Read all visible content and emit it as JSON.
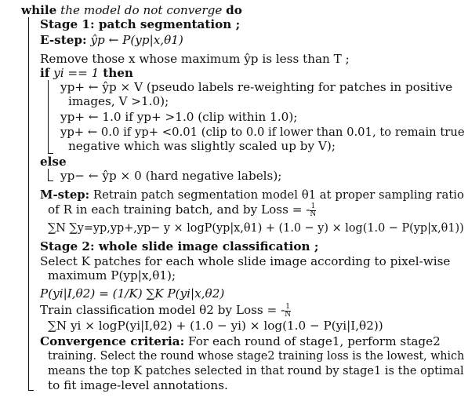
{
  "algorithm": {
    "header": {
      "keyword_while": "while",
      "condition": "the model do not converge",
      "keyword_do": "do"
    },
    "stage1": {
      "title": "Stage 1: patch segmentation ;",
      "estep_label": "E-step:",
      "estep_formula": "ŷp ← P(yp|x,θ1)",
      "remove_line": "Remove those x whose maximum ŷp is less than T ;",
      "if_keyword": "if",
      "if_condition": "yi == 1",
      "then_keyword": "then",
      "pos_line1": "yp+ ← ŷp × V (pseudo labels re-weighting for patches in positive",
      "pos_line2": "images, V >1.0);",
      "clip_line": "yp+ ← 1.0 if yp+ >1.0 (clip within 1.0);",
      "zero_line1": "yp+ ← 0.0 if yp+ <0.01 (clip to 0.0 if lower than 0.01, to remain true",
      "zero_line2": "negative which was slightly scaled up by V);",
      "else_keyword": "else",
      "neg_line": "yp− ← ŷp × 0 (hard negative labels);",
      "mstep_label": "M-step:",
      "mstep_line1": "Retrain patch segmentation model θ1 at proper sampling ratio",
      "mstep_line2": "of R in each training batch, and by Loss = -",
      "mstep_frac_num": "1",
      "mstep_frac_den": "N",
      "mstep_loss": "∑N ∑y=yp,yp+,yp− y × logP(yp|x,θ1) + (1.0 − y) × log(1.0 − P(yp|x,θ1))"
    },
    "stage2": {
      "title": "Stage 2: whole slide image classification ;",
      "select_line1": "Select K patches for each whole slide image according to pixel-wise",
      "select_line2": "maximum P(yp|x,θ1);",
      "agg_formula": "P(yi|I,θ2) = (1/K) ∑K P(yi|x,θ2)",
      "train_line": "Train classification model θ2 by Loss = -",
      "train_frac_num": "1",
      "train_frac_den": "N",
      "train_loss": "∑N yi × logP(yi|I,θ2) + (1.0 − yi) × log(1.0 − P(yi|I,θ2))"
    },
    "convergence": {
      "label": "Convergence criteria:",
      "line1": "For each round of stage1, perform stage2",
      "line2": "training. Select the round whose stage2 training loss is the lowest, which",
      "line3": "means the top K patches selected in that round by stage1 is the optimal",
      "line4": "to fit image-level annotations."
    }
  }
}
